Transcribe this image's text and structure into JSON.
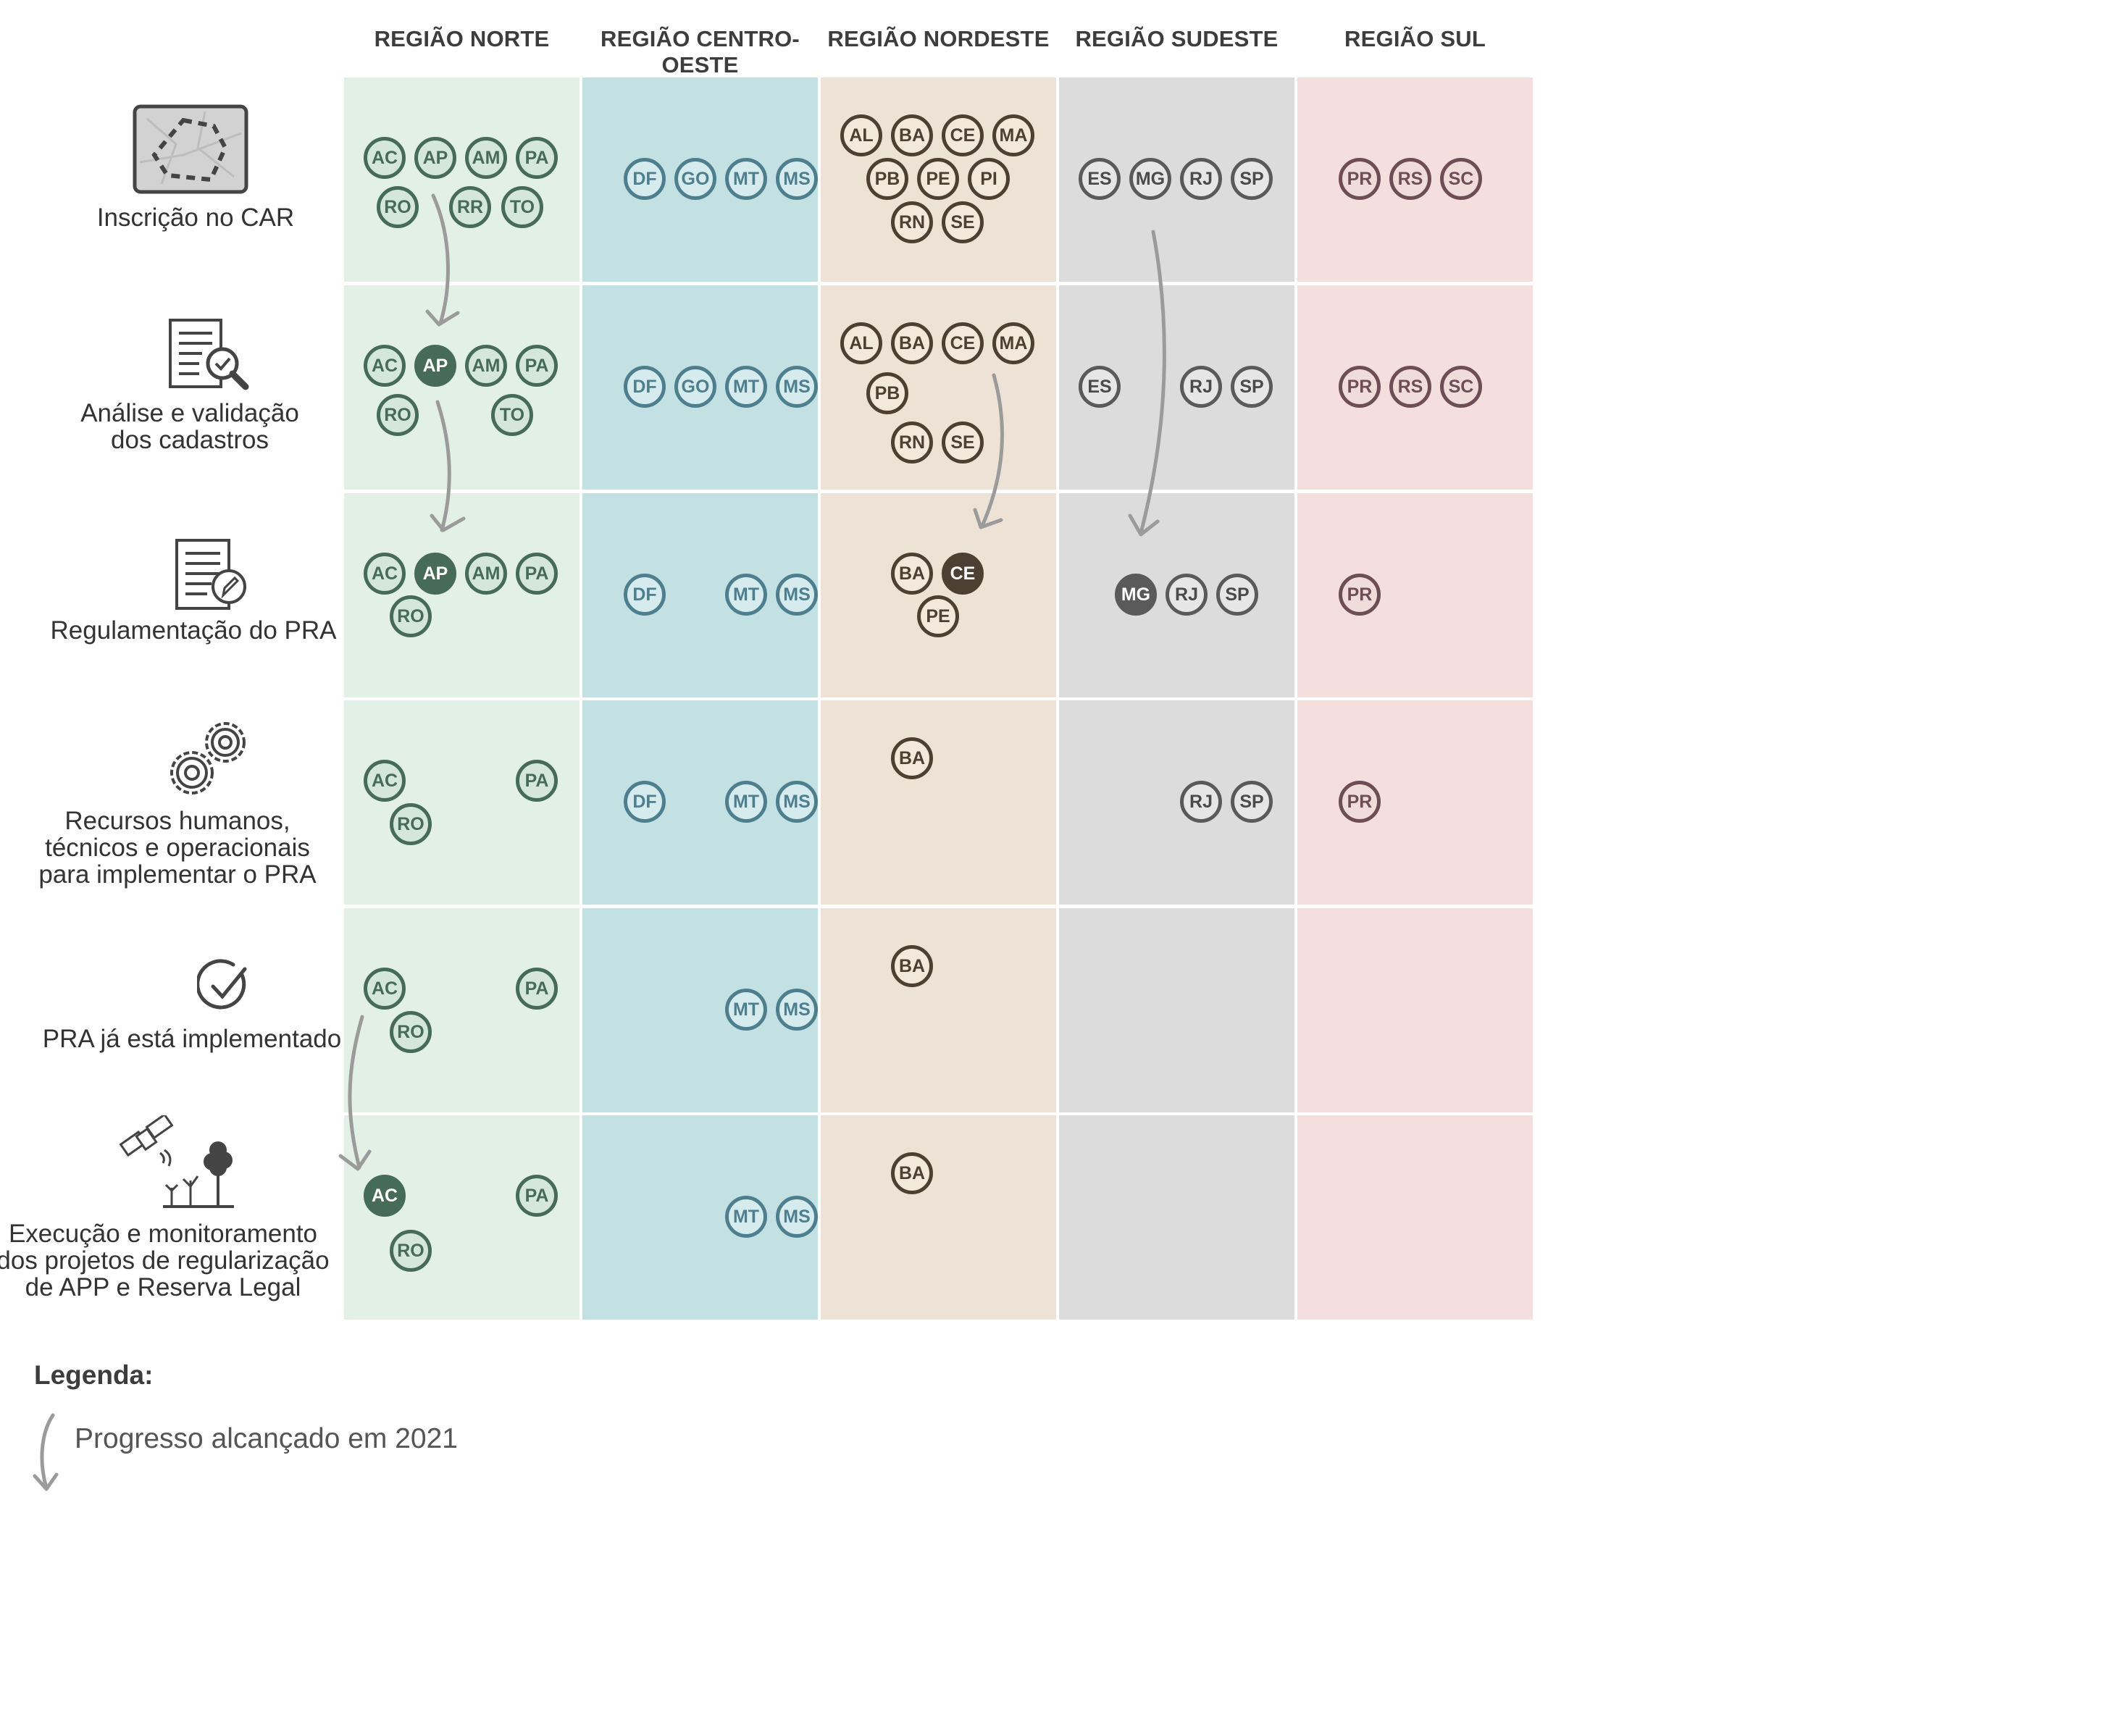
{
  "regions": [
    {
      "key": "norte",
      "label": "REGIÃO NORTE",
      "bg": "#e3f0e6",
      "ring": "#466b57",
      "fill": "#d4e7da",
      "text": "#466b57",
      "dark": "#466b57"
    },
    {
      "key": "centro",
      "label": "REGIÃO CENTRO-OESTE",
      "bg": "#c3e0e3",
      "ring": "#4e7f8e",
      "fill": "#d5ebee",
      "text": "#4e7f8e",
      "dark": "#4e7f8e"
    },
    {
      "key": "nordeste",
      "label": "REGIÃO NORDESTE",
      "bg": "#ece2d5",
      "ring": "#4e3f33",
      "fill": "#f3e8dc",
      "text": "#4e3f33",
      "dark": "#4e3f33"
    },
    {
      "key": "sudeste",
      "label": "REGIÃO SUDESTE",
      "bg": "#dcdcdd",
      "ring": "#5a5a5a",
      "fill": "#e6e6e7",
      "text": "#4a4a4a",
      "dark": "#5a5a5a"
    },
    {
      "key": "sul",
      "label": "REGIÃO SUL",
      "bg": "#f4dede",
      "ring": "#6e4d55",
      "fill": "#f1dcdc",
      "text": "#6e4d55",
      "dark": "#6e4d55"
    }
  ],
  "stages": [
    {
      "key": "car",
      "label": "Inscrição no CAR",
      "icon": "map-icon"
    },
    {
      "key": "analise",
      "label": "Análise e validação\ndos cadastros",
      "icon": "document-search-icon"
    },
    {
      "key": "regulamentacao",
      "label": "Regulamentação do PRA",
      "icon": "document-pen-icon"
    },
    {
      "key": "recursos",
      "label": "Recursos humanos,\ntécnicos e operacionais\npara implementar o PRA",
      "icon": "gears-icon"
    },
    {
      "key": "implementado",
      "label": "PRA já está implementado",
      "icon": "check-circle-icon"
    },
    {
      "key": "execucao",
      "label": "Execução e monitoramento\ndos projetos de regularização\nde APP e Reserva Legal",
      "icon": "satellite-forest-icon"
    }
  ],
  "cells": [
    [
      [
        [
          "AC",
          ""
        ],
        [
          "AP",
          ""
        ],
        [
          "AM",
          ""
        ],
        [
          "PA",
          ""
        ],
        [
          "RO",
          ""
        ],
        [
          "RR",
          ""
        ],
        [
          "TO",
          ""
        ]
      ],
      [
        [
          "DF",
          ""
        ],
        [
          "GO",
          ""
        ],
        [
          "MT",
          ""
        ],
        [
          "MS",
          ""
        ]
      ],
      [
        [
          "AL",
          ""
        ],
        [
          "BA",
          ""
        ],
        [
          "CE",
          ""
        ],
        [
          "MA",
          ""
        ],
        [
          "PB",
          ""
        ],
        [
          "PE",
          ""
        ],
        [
          "PI",
          ""
        ],
        [
          "RN",
          ""
        ],
        [
          "SE",
          ""
        ]
      ],
      [
        [
          "ES",
          ""
        ],
        [
          "MG",
          ""
        ],
        [
          "RJ",
          ""
        ],
        [
          "SP",
          ""
        ]
      ],
      [
        [
          "PR",
          ""
        ],
        [
          "RS",
          ""
        ],
        [
          "SC",
          ""
        ]
      ]
    ],
    [
      [
        [
          "AC",
          ""
        ],
        [
          "AP",
          "new"
        ],
        [
          "AM",
          ""
        ],
        [
          "PA",
          ""
        ],
        [
          "RO",
          ""
        ],
        [
          "TO",
          ""
        ]
      ],
      [
        [
          "DF",
          ""
        ],
        [
          "GO",
          ""
        ],
        [
          "MT",
          ""
        ],
        [
          "MS",
          ""
        ]
      ],
      [
        [
          "AL",
          ""
        ],
        [
          "BA",
          ""
        ],
        [
          "CE",
          ""
        ],
        [
          "MA",
          ""
        ],
        [
          "PB",
          ""
        ],
        [
          "RN",
          ""
        ],
        [
          "SE",
          ""
        ]
      ],
      [
        [
          "ES",
          ""
        ],
        [
          "RJ",
          ""
        ],
        [
          "SP",
          ""
        ]
      ],
      [
        [
          "PR",
          ""
        ],
        [
          "RS",
          ""
        ],
        [
          "SC",
          ""
        ]
      ]
    ],
    [
      [
        [
          "AC",
          ""
        ],
        [
          "AP",
          "new"
        ],
        [
          "AM",
          ""
        ],
        [
          "PA",
          ""
        ],
        [
          "RO",
          ""
        ]
      ],
      [
        [
          "DF",
          ""
        ],
        [
          "MT",
          ""
        ],
        [
          "MS",
          ""
        ]
      ],
      [
        [
          "BA",
          ""
        ],
        [
          "CE",
          "new"
        ],
        [
          "PE",
          ""
        ]
      ],
      [
        [
          "MG",
          "new"
        ],
        [
          "RJ",
          ""
        ],
        [
          "SP",
          ""
        ]
      ],
      [
        [
          "PR",
          ""
        ]
      ]
    ],
    [
      [
        [
          "AC",
          ""
        ],
        [
          "PA",
          ""
        ],
        [
          "RO",
          ""
        ]
      ],
      [
        [
          "DF",
          ""
        ],
        [
          "MT",
          ""
        ],
        [
          "MS",
          ""
        ]
      ],
      [
        [
          "BA",
          ""
        ]
      ],
      [
        [
          "RJ",
          ""
        ],
        [
          "SP",
          ""
        ]
      ],
      [
        [
          "PR",
          ""
        ]
      ]
    ],
    [
      [
        [
          "AC",
          ""
        ],
        [
          "PA",
          ""
        ],
        [
          "RO",
          ""
        ]
      ],
      [
        [
          "MT",
          ""
        ],
        [
          "MS",
          ""
        ]
      ],
      [
        [
          "BA",
          ""
        ]
      ],
      [],
      []
    ],
    [
      [
        [
          "AC",
          "new"
        ],
        [
          "PA",
          ""
        ],
        [
          "RO",
          ""
        ]
      ],
      [
        [
          "MT",
          ""
        ],
        [
          "MS",
          ""
        ]
      ],
      [
        [
          "BA",
          ""
        ]
      ],
      [],
      []
    ]
  ],
  "arrow_color": "#9b9b9b",
  "legend": {
    "title": "Legenda:",
    "arrow_text": "Progresso alcançado em 2021"
  }
}
